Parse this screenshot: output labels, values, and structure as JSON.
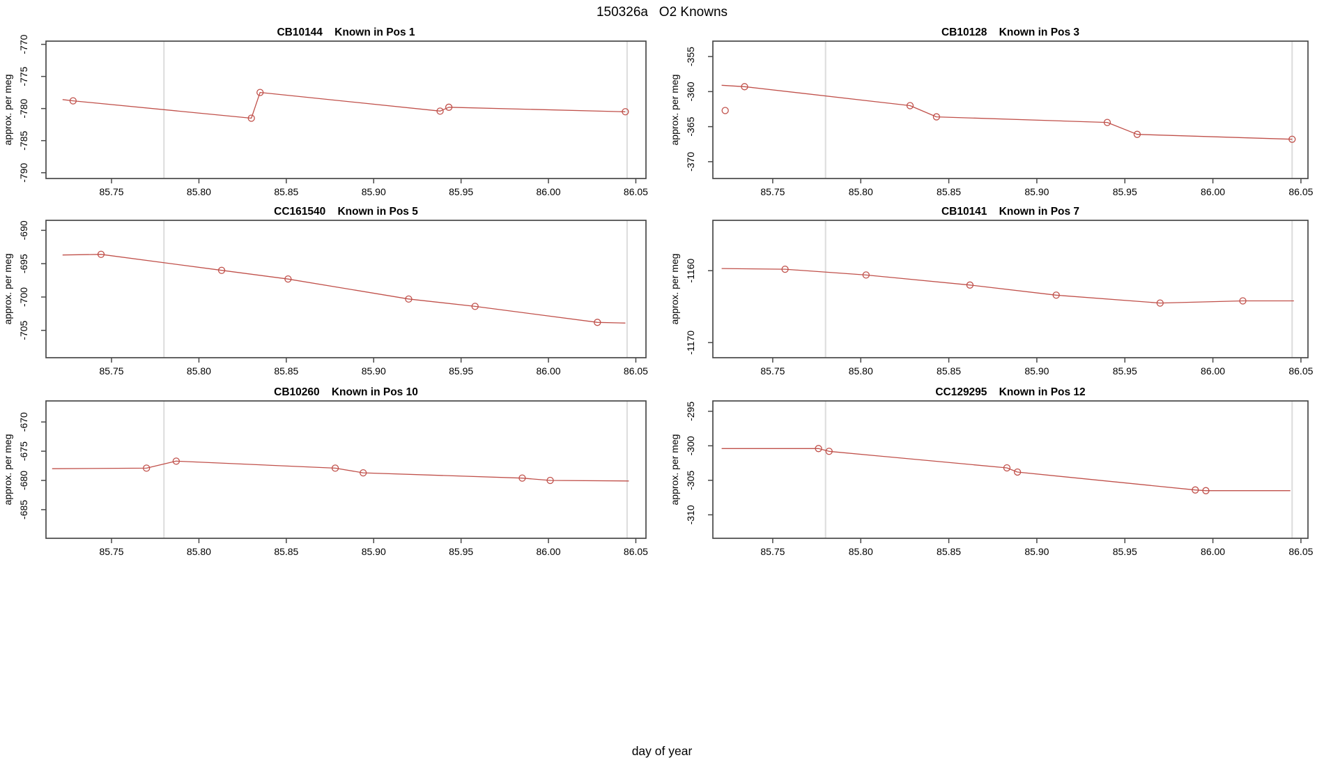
{
  "page": {
    "main_title": "150326a   O2 Knowns",
    "x_axis_label": "day of year",
    "y_axis_label": "approx. per meg"
  },
  "style": {
    "series_color": "#c0504a",
    "refline_color": "#dcdcdc",
    "frame_color": "#484848",
    "text_color": "#000000",
    "background": "#ffffff"
  },
  "chart_data": [
    {
      "type": "line",
      "station_id": "CB10144",
      "title": "CB10144    Known in Pos 1",
      "xlabel": "day of year",
      "ylabel": "approx. per meg",
      "x_ticks": [
        85.75,
        85.8,
        85.85,
        85.9,
        85.95,
        86.0,
        86.05
      ],
      "y_ticks": [
        -770,
        -775,
        -780,
        -785,
        -790
      ],
      "x_range": [
        85.7125,
        86.0558
      ],
      "y_range": [
        -790.9,
        -769.5
      ],
      "ref_lines_x": [
        85.78,
        86.045
      ],
      "line": [
        [
          85.722,
          -778.6
        ],
        [
          85.728,
          -778.8
        ],
        [
          85.83,
          -781.5
        ],
        [
          85.835,
          -777.5
        ],
        [
          85.938,
          -780.4
        ],
        [
          85.943,
          -779.8
        ],
        [
          86.044,
          -780.5
        ]
      ],
      "points": [
        [
          85.728,
          -778.8
        ],
        [
          85.83,
          -781.5
        ],
        [
          85.835,
          -777.5
        ],
        [
          85.938,
          -780.4
        ],
        [
          85.943,
          -779.8
        ],
        [
          86.044,
          -780.5
        ]
      ],
      "extra_points": []
    },
    {
      "type": "line",
      "station_id": "CB10128",
      "title": "CB10128    Known in Pos 3",
      "xlabel": "day of year",
      "ylabel": "approx. per meg",
      "x_ticks": [
        85.75,
        85.8,
        85.85,
        85.9,
        85.95,
        86.0,
        86.05
      ],
      "y_ticks": [
        -355,
        -360,
        -365,
        -370
      ],
      "x_range": [
        85.716,
        86.054
      ],
      "y_range": [
        -372.4,
        -352.8
      ],
      "ref_lines_x": [
        85.78,
        86.045
      ],
      "line": [
        [
          85.721,
          -359.1
        ],
        [
          85.734,
          -359.3
        ],
        [
          85.828,
          -362.0
        ],
        [
          85.843,
          -363.6
        ],
        [
          85.94,
          -364.4
        ],
        [
          85.957,
          -366.1
        ],
        [
          86.045,
          -366.8
        ]
      ],
      "points": [
        [
          85.734,
          -359.3
        ],
        [
          85.828,
          -362.0
        ],
        [
          85.843,
          -363.6
        ],
        [
          85.94,
          -364.4
        ],
        [
          85.957,
          -366.1
        ],
        [
          86.045,
          -366.8
        ]
      ],
      "extra_points": [
        [
          85.723,
          -362.7
        ]
      ]
    },
    {
      "type": "line",
      "station_id": "CC161540",
      "title": "CC161540    Known in Pos 5",
      "xlabel": "day of year",
      "ylabel": "approx. per meg",
      "x_ticks": [
        85.75,
        85.8,
        85.85,
        85.9,
        85.95,
        86.0,
        86.05
      ],
      "y_ticks": [
        -690,
        -695,
        -700,
        -705
      ],
      "x_range": [
        85.7125,
        86.0558
      ],
      "y_range": [
        -709.1,
        -688.5
      ],
      "ref_lines_x": [
        85.78,
        86.045
      ],
      "line": [
        [
          85.722,
          -693.7
        ],
        [
          85.744,
          -693.6
        ],
        [
          85.813,
          -696.0
        ],
        [
          85.851,
          -697.3
        ],
        [
          85.92,
          -700.3
        ],
        [
          85.958,
          -701.4
        ],
        [
          86.028,
          -703.8
        ],
        [
          86.044,
          -703.9
        ]
      ],
      "points": [
        [
          85.744,
          -693.6
        ],
        [
          85.813,
          -696.0
        ],
        [
          85.851,
          -697.3
        ],
        [
          85.92,
          -700.3
        ],
        [
          85.958,
          -701.4
        ],
        [
          86.028,
          -703.8
        ]
      ],
      "extra_points": []
    },
    {
      "type": "line",
      "station_id": "CB10141",
      "title": "CB10141    Known in Pos 7",
      "xlabel": "day of year",
      "ylabel": "approx. per meg",
      "x_ticks": [
        85.75,
        85.8,
        85.85,
        85.9,
        85.95,
        86.0,
        86.05
      ],
      "y_ticks": [
        -1160,
        -1170
      ],
      "x_range": [
        85.716,
        86.054
      ],
      "y_range": [
        -1172.1,
        -1153.0
      ],
      "ref_lines_x": [
        85.78,
        86.045
      ],
      "line": [
        [
          85.721,
          -1159.7
        ],
        [
          85.757,
          -1159.8
        ],
        [
          85.803,
          -1160.6
        ],
        [
          85.862,
          -1162.0
        ],
        [
          85.911,
          -1163.4
        ],
        [
          85.97,
          -1164.5
        ],
        [
          86.017,
          -1164.2
        ],
        [
          86.046,
          -1164.2
        ]
      ],
      "points": [
        [
          85.757,
          -1159.8
        ],
        [
          85.803,
          -1160.6
        ],
        [
          85.862,
          -1162.0
        ],
        [
          85.911,
          -1163.4
        ],
        [
          85.97,
          -1164.5
        ],
        [
          86.017,
          -1164.2
        ]
      ],
      "extra_points": []
    },
    {
      "type": "line",
      "station_id": "CB10260",
      "title": "CB10260    Known in Pos 10",
      "xlabel": "day of year",
      "ylabel": "approx. per meg",
      "x_ticks": [
        85.75,
        85.8,
        85.85,
        85.9,
        85.95,
        86.0,
        86.05
      ],
      "y_ticks": [
        -670,
        -675,
        -680,
        -685
      ],
      "x_range": [
        85.7125,
        86.0558
      ],
      "y_range": [
        -689.9,
        -666.4
      ],
      "ref_lines_x": [
        85.78,
        86.045
      ],
      "line": [
        [
          85.716,
          -678.0
        ],
        [
          85.77,
          -677.9
        ],
        [
          85.787,
          -676.7
        ],
        [
          85.878,
          -677.9
        ],
        [
          85.894,
          -678.7
        ],
        [
          85.985,
          -679.6
        ],
        [
          86.001,
          -680.0
        ],
        [
          86.046,
          -680.1
        ]
      ],
      "points": [
        [
          85.77,
          -677.9
        ],
        [
          85.787,
          -676.7
        ],
        [
          85.878,
          -677.9
        ],
        [
          85.894,
          -678.7
        ],
        [
          85.985,
          -679.6
        ],
        [
          86.001,
          -680.0
        ]
      ],
      "extra_points": []
    },
    {
      "type": "line",
      "station_id": "CC129295",
      "title": "CC129295    Known in Pos 12",
      "xlabel": "day of year",
      "ylabel": "approx. per meg",
      "x_ticks": [
        85.75,
        85.8,
        85.85,
        85.9,
        85.95,
        86.0,
        86.05
      ],
      "y_ticks": [
        -295,
        -300,
        -305,
        -310
      ],
      "x_range": [
        85.716,
        86.054
      ],
      "y_range": [
        -313.4,
        -293.5
      ],
      "ref_lines_x": [
        85.78,
        86.045
      ],
      "line": [
        [
          85.721,
          -300.4
        ],
        [
          85.776,
          -300.4
        ],
        [
          85.782,
          -300.8
        ],
        [
          85.883,
          -303.2
        ],
        [
          85.889,
          -303.8
        ],
        [
          85.99,
          -306.4
        ],
        [
          85.996,
          -306.5
        ],
        [
          86.044,
          -306.5
        ]
      ],
      "points": [
        [
          85.776,
          -300.4
        ],
        [
          85.782,
          -300.8
        ],
        [
          85.883,
          -303.2
        ],
        [
          85.889,
          -303.8
        ],
        [
          85.99,
          -306.4
        ],
        [
          85.996,
          -306.5
        ]
      ],
      "extra_points": []
    }
  ]
}
